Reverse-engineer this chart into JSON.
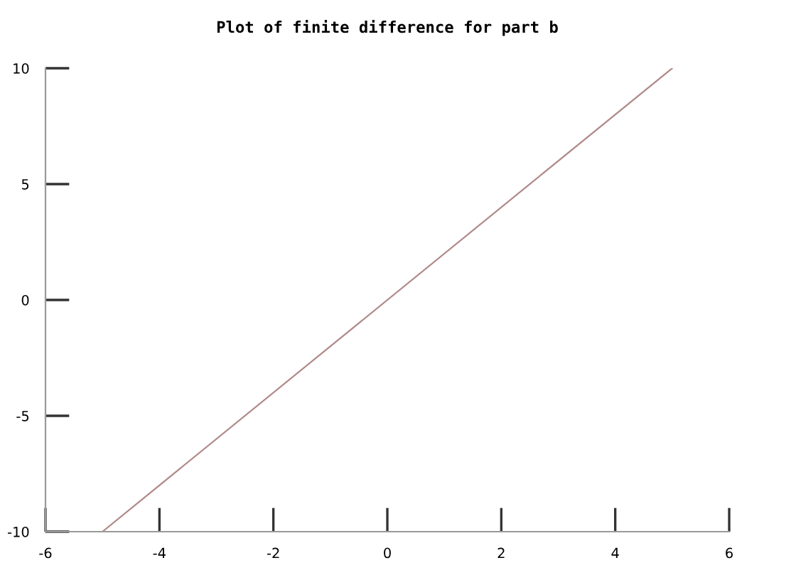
{
  "chart_data": {
    "type": "line",
    "title": "Plot of finite difference for part b",
    "x": [
      -5,
      5
    ],
    "series": [
      {
        "color": "#b08a8a",
        "values": [
          -10,
          10
        ]
      }
    ],
    "xlim": [
      -6,
      6
    ],
    "xticks": [
      -6,
      -4,
      -2,
      0,
      2,
      4,
      6
    ],
    "ylim": [
      -10,
      10
    ],
    "yticks": [
      -10,
      -5,
      0,
      5,
      10
    ],
    "marker": "none",
    "line_style": "solid"
  }
}
